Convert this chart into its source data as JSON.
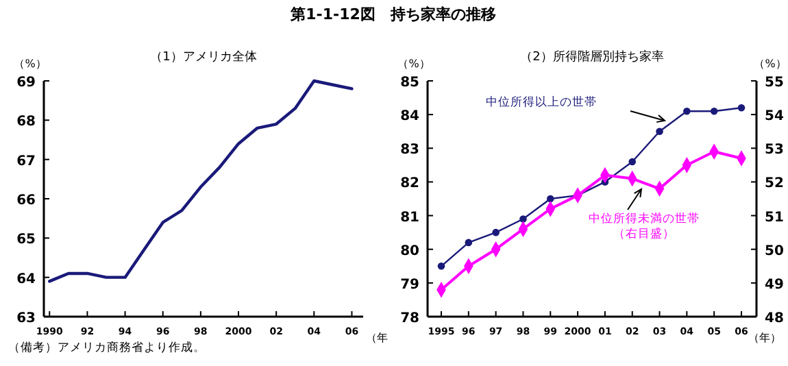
{
  "chart_data": [
    {
      "type": "line",
      "title": "第1-1-12図　持ち家率の推移",
      "subtitle": "（1）アメリカ全体",
      "ylabel": "（%）",
      "xlabel": "（年",
      "x": [
        1990,
        1991,
        1992,
        1993,
        1994,
        1995,
        1996,
        1997,
        1998,
        1999,
        2000,
        2001,
        2002,
        2003,
        2004,
        2005,
        2006
      ],
      "series": [
        {
          "color": "#1a1a7a",
          "values": [
            63.9,
            64.1,
            64.1,
            64.0,
            64.0,
            64.7,
            65.4,
            65.7,
            66.3,
            66.8,
            67.4,
            67.8,
            67.9,
            68.3,
            69.0,
            68.9,
            68.8
          ]
        }
      ],
      "xlim": [
        1989.7,
        2006.6
      ],
      "xticks": [
        {
          "value": 1990,
          "label": "1990"
        },
        {
          "value": 1992,
          "label": "92"
        },
        {
          "value": 1994,
          "label": "94"
        },
        {
          "value": 1996,
          "label": "96"
        },
        {
          "value": 1998,
          "label": "98"
        },
        {
          "value": 2000,
          "label": "2000"
        },
        {
          "value": 2002,
          "label": "02"
        },
        {
          "value": 2004,
          "label": "04"
        },
        {
          "value": 2006,
          "label": "06"
        }
      ],
      "ylim": [
        63,
        69
      ],
      "yticks": [
        63,
        64,
        65,
        66,
        67,
        68,
        69
      ],
      "grid": false,
      "marker": "none",
      "annotations": [
        "（備考）アメリカ商務省より作成。"
      ]
    },
    {
      "type": "line",
      "subtitle": "（2）所得階層別持ち家率",
      "ylabel": "（%）",
      "y2label": "（%）",
      "xlabel": "（年）",
      "categories": [
        "1995",
        "96",
        "97",
        "98",
        "99",
        "2000",
        "01",
        "02",
        "03",
        "04",
        "05",
        "06"
      ],
      "series": [
        {
          "name": "中位所得以上の世帯",
          "color": "#1a1a7a",
          "marker": "circle",
          "values": [
            79.5,
            80.2,
            80.5,
            80.9,
            81.5,
            81.6,
            82.0,
            82.6,
            83.5,
            84.1,
            84.1,
            84.2
          ]
        },
        {
          "name": "中位所得未満の世帯（右目盛）",
          "color": "#ff00ff",
          "marker": "diamond",
          "axis": "y2",
          "values": [
            48.8,
            49.5,
            50.0,
            50.6,
            51.2,
            51.6,
            52.2,
            52.1,
            51.8,
            52.5,
            52.9,
            52.7
          ]
        }
      ],
      "ylim": [
        78,
        85
      ],
      "yticks": [
        78,
        79,
        80,
        81,
        82,
        83,
        84,
        85
      ],
      "y2lim": [
        48,
        55
      ],
      "y2ticks": [
        48,
        49,
        50,
        51,
        52,
        53,
        54,
        55
      ],
      "grid": false
    }
  ]
}
